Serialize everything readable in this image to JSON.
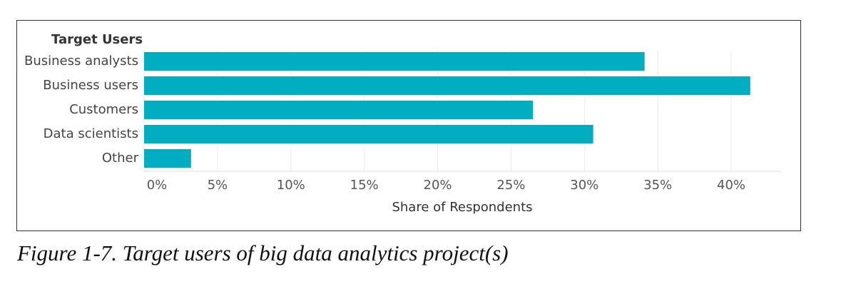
{
  "chart_data": {
    "type": "bar",
    "orientation": "horizontal",
    "legend_title": "Target Users",
    "x_label": "Share of Respondents",
    "caption": "Figure 1-7. Target users of big data analytics project(s)",
    "categories": [
      "Business analysts",
      "Business users",
      "Customers",
      "Data scientists",
      "Other"
    ],
    "values": [
      34.1,
      41.3,
      26.5,
      30.6,
      3.2
    ],
    "color": "#00adc1",
    "xlim": [
      0,
      43.4
    ],
    "xticks": [
      {
        "value": 0,
        "label": "0%"
      },
      {
        "value": 5,
        "label": "5%"
      },
      {
        "value": 10,
        "label": "10%"
      },
      {
        "value": 15,
        "label": "15%"
      },
      {
        "value": 20,
        "label": "20%"
      },
      {
        "value": 25,
        "label": "25%"
      },
      {
        "value": 30,
        "label": "30%"
      },
      {
        "value": 35,
        "label": "35%"
      },
      {
        "value": 40,
        "label": "40%"
      }
    ],
    "grid": true
  }
}
